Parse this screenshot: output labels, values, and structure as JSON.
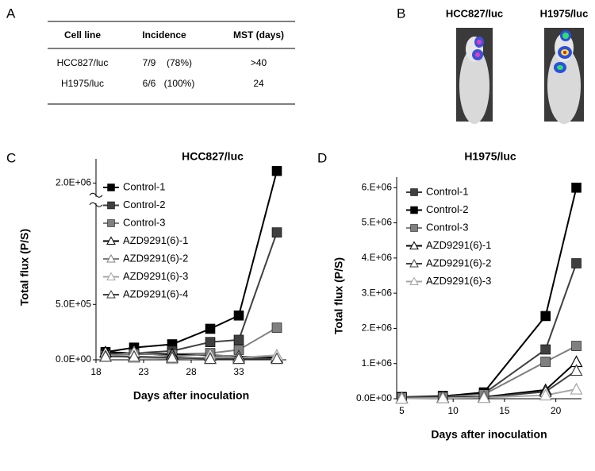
{
  "panel_labels": [
    "A",
    "B",
    "C",
    "D"
  ],
  "table": {
    "header": [
      "Cell line",
      "Incidence",
      "MST (days)"
    ],
    "rows": [
      [
        "HCC827/luc",
        "7/9",
        "(78%)",
        ">40"
      ],
      [
        "H1975/luc",
        "6/6",
        "(100%)",
        "24"
      ]
    ]
  },
  "images": {
    "labels": [
      "HCC827/luc",
      "H1975/luc"
    ]
  },
  "chart_data": [
    {
      "type": "line",
      "title": "HCC827/luc",
      "xlabel": "Days after inoculation",
      "ylabel": "Total flux (P/S)",
      "x": [
        19,
        22,
        26,
        30,
        33,
        37
      ],
      "xlim": [
        18,
        38
      ],
      "xticks": [
        18,
        23,
        28,
        33
      ],
      "ylim": [
        0,
        2100000
      ],
      "ybreak": [
        1400000,
        1950000
      ],
      "yticks": [
        {
          "value": 0,
          "label": "0.0E+00"
        },
        {
          "value": 500000,
          "label": "5.0E+05"
        },
        {
          "value": 2000000,
          "label": "2.0E+06"
        }
      ],
      "series": [
        {
          "name": "Control-1",
          "color": "#000000",
          "marker": "square",
          "values": [
            70000,
            110000,
            140000,
            280000,
            400000,
            2050000
          ]
        },
        {
          "name": "Control-2",
          "color": "#404040",
          "marker": "square",
          "values": [
            50000,
            60000,
            80000,
            160000,
            180000,
            1150000
          ]
        },
        {
          "name": "Control-3",
          "color": "#808080",
          "marker": "square",
          "values": [
            40000,
            50000,
            50000,
            60000,
            90000,
            290000
          ]
        },
        {
          "name": "AZD9291(6)-1",
          "color": "#000000",
          "marker": "triangle",
          "values": [
            70000,
            60000,
            50000,
            40000,
            30000,
            20000
          ]
        },
        {
          "name": "AZD9291(6)-2",
          "color": "#808080",
          "marker": "triangle",
          "values": [
            30000,
            70000,
            30000,
            50000,
            20000,
            40000
          ]
        },
        {
          "name": "AZD9291(6)-3",
          "color": "#a6a6a6",
          "marker": "triangle",
          "values": [
            40000,
            20000,
            10000,
            20000,
            20000,
            40000
          ]
        },
        {
          "name": "AZD9291(6)-4",
          "color": "#404040",
          "marker": "triangle",
          "values": [
            30000,
            30000,
            20000,
            10000,
            10000,
            10000
          ]
        }
      ]
    },
    {
      "type": "line",
      "title": "H1975/luc",
      "xlabel": "Days after inoculation",
      "ylabel": "Total flux (P/S)",
      "x": [
        5,
        9,
        13,
        19,
        22
      ],
      "xlim": [
        4.5,
        22.5
      ],
      "xticks": [
        5,
        10,
        15,
        20
      ],
      "ylim": [
        0,
        6300000
      ],
      "yticks": [
        {
          "value": 0,
          "label": "0.0E+00"
        },
        {
          "value": 1000000,
          "label": "1.E+06"
        },
        {
          "value": 2000000,
          "label": "2.E+06"
        },
        {
          "value": 3000000,
          "label": "3.E+06"
        },
        {
          "value": 4000000,
          "label": "4.E+06"
        },
        {
          "value": 5000000,
          "label": "5.E+06"
        },
        {
          "value": 6000000,
          "label": "6.E+06"
        }
      ],
      "series": [
        {
          "name": "Control-1",
          "color": "#404040",
          "marker": "square",
          "values": [
            50000,
            80000,
            150000,
            1400000,
            3850000
          ]
        },
        {
          "name": "Control-2",
          "color": "#000000",
          "marker": "square",
          "values": [
            40000,
            70000,
            180000,
            2350000,
            6000000
          ]
        },
        {
          "name": "Control-3",
          "color": "#808080",
          "marker": "square",
          "values": [
            30000,
            50000,
            120000,
            1050000,
            1500000
          ]
        },
        {
          "name": "AZD9291(6)-1",
          "color": "#000000",
          "marker": "triangle",
          "values": [
            20000,
            40000,
            50000,
            250000,
            1050000
          ]
        },
        {
          "name": "AZD9291(6)-2",
          "color": "#404040",
          "marker": "triangle",
          "values": [
            10000,
            30000,
            40000,
            200000,
            800000
          ]
        },
        {
          "name": "AZD9291(6)-3",
          "color": "#a6a6a6",
          "marker": "triangle",
          "values": [
            10000,
            20000,
            30000,
            100000,
            270000
          ]
        }
      ]
    }
  ]
}
